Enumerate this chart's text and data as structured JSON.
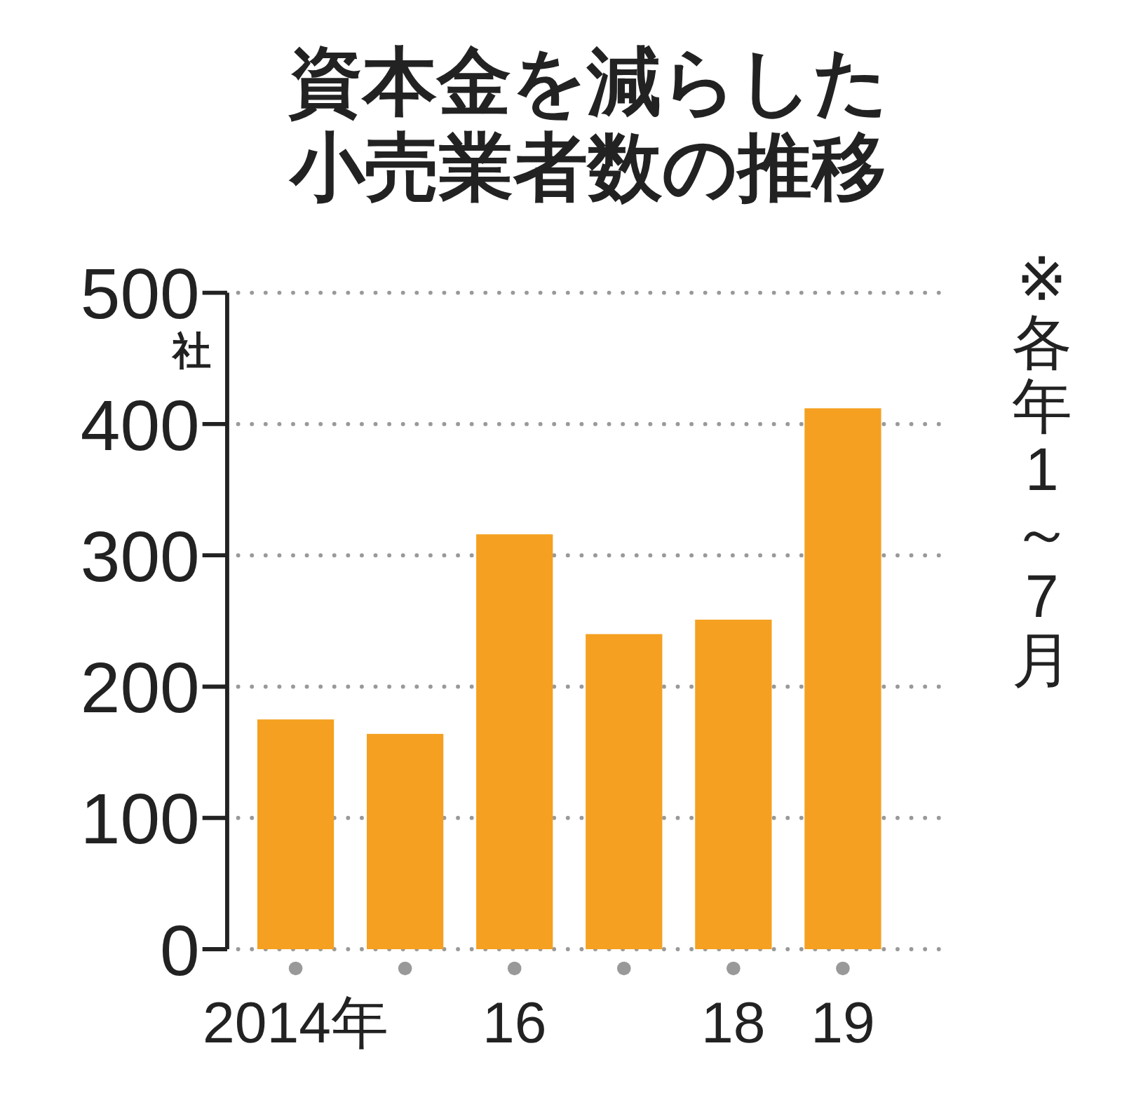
{
  "chart_data": {
    "type": "bar",
    "title": "資本金を減らした小売業者数の推移",
    "ylabel": "社",
    "categories": [
      "2014年",
      null,
      "16",
      null,
      "18",
      "19"
    ],
    "values": [
      175,
      164,
      316,
      240,
      251,
      412
    ],
    "color": "#f5a020",
    "ylim": [
      0,
      500
    ],
    "yticks": [
      0,
      100,
      200,
      300,
      400,
      500
    ],
    "grid": "y",
    "annotations": [
      "※各年1～7月"
    ]
  }
}
